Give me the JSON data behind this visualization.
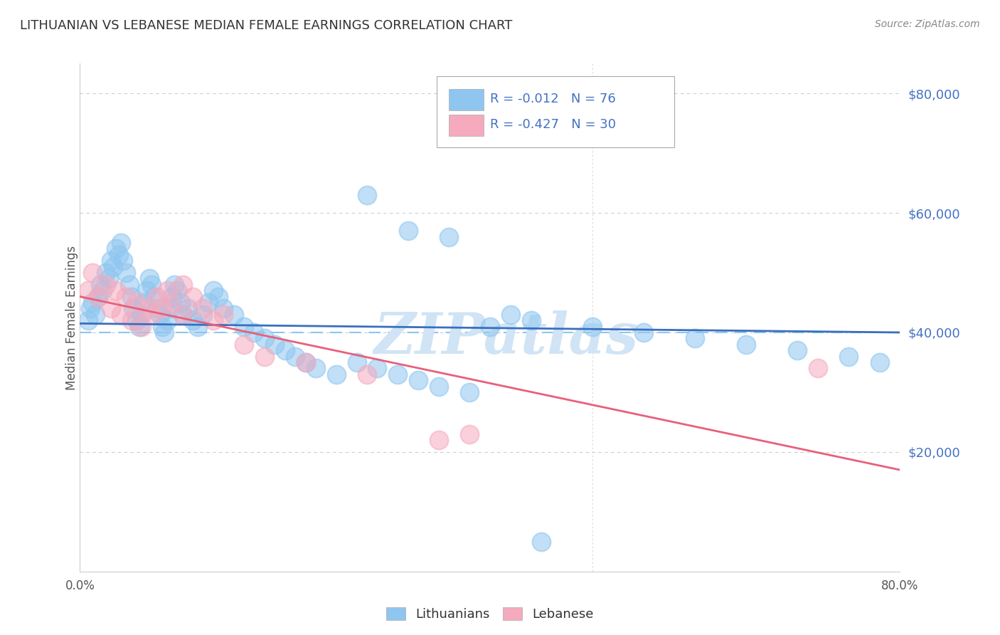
{
  "title": "LITHUANIAN VS LEBANESE MEDIAN FEMALE EARNINGS CORRELATION CHART",
  "source": "Source: ZipAtlas.com",
  "ylabel": "Median Female Earnings",
  "watermark": "ZIPatlas",
  "xmin": 0.0,
  "xmax": 0.8,
  "ymin": 0,
  "ymax": 85000,
  "yticks": [
    20000,
    40000,
    60000,
    80000
  ],
  "ytick_labels": [
    "$20,000",
    "$40,000",
    "$60,000",
    "$80,000"
  ],
  "hline_y": 40000,
  "legend": {
    "lit_R": "R = -0.012",
    "lit_N": "N = 76",
    "leb_R": "R = -0.427",
    "leb_N": "N = 30"
  },
  "lit_color": "#8EC6F0",
  "leb_color": "#F5AABE",
  "lit_line_color": "#3A6FBF",
  "leb_line_color": "#E8607A",
  "hline_color": "#8EC6F0",
  "background_color": "#FFFFFF",
  "grid_color": "#CCCCCC",
  "axis_color": "#4472C4",
  "title_color": "#333333",
  "watermark_color": "#D0E4F5",
  "lit_scatter_x": [
    0.008,
    0.01,
    0.012,
    0.015,
    0.018,
    0.02,
    0.022,
    0.025,
    0.028,
    0.03,
    0.032,
    0.035,
    0.038,
    0.04,
    0.042,
    0.045,
    0.048,
    0.05,
    0.052,
    0.055,
    0.058,
    0.06,
    0.062,
    0.065,
    0.068,
    0.07,
    0.072,
    0.075,
    0.078,
    0.08,
    0.082,
    0.085,
    0.088,
    0.09,
    0.092,
    0.095,
    0.098,
    0.1,
    0.105,
    0.11,
    0.115,
    0.12,
    0.125,
    0.13,
    0.135,
    0.14,
    0.15,
    0.16,
    0.17,
    0.18,
    0.19,
    0.2,
    0.21,
    0.22,
    0.23,
    0.25,
    0.27,
    0.29,
    0.31,
    0.33,
    0.35,
    0.38,
    0.4,
    0.42,
    0.44,
    0.5,
    0.55,
    0.6,
    0.65,
    0.7,
    0.75,
    0.78,
    0.28,
    0.32,
    0.36,
    0.45
  ],
  "lit_scatter_y": [
    42000,
    44000,
    45000,
    43000,
    46000,
    48000,
    47000,
    50000,
    49000,
    52000,
    51000,
    54000,
    53000,
    55000,
    52000,
    50000,
    48000,
    46000,
    44000,
    42000,
    41000,
    43000,
    45000,
    47000,
    49000,
    48000,
    46000,
    44000,
    43000,
    41000,
    40000,
    42000,
    44000,
    46000,
    48000,
    47000,
    45000,
    43000,
    44000,
    42000,
    41000,
    43000,
    45000,
    47000,
    46000,
    44000,
    43000,
    41000,
    40000,
    39000,
    38000,
    37000,
    36000,
    35000,
    34000,
    33000,
    35000,
    34000,
    33000,
    32000,
    31000,
    30000,
    41000,
    43000,
    42000,
    41000,
    40000,
    39000,
    38000,
    37000,
    36000,
    35000,
    63000,
    57000,
    56000,
    5000
  ],
  "leb_scatter_x": [
    0.008,
    0.012,
    0.018,
    0.025,
    0.03,
    0.035,
    0.04,
    0.045,
    0.05,
    0.055,
    0.06,
    0.065,
    0.07,
    0.075,
    0.08,
    0.085,
    0.09,
    0.1,
    0.11,
    0.12,
    0.13,
    0.14,
    0.16,
    0.18,
    0.22,
    0.28,
    0.35,
    0.38,
    0.72,
    0.1
  ],
  "leb_scatter_y": [
    47000,
    50000,
    46000,
    48000,
    44000,
    47000,
    43000,
    46000,
    42000,
    45000,
    41000,
    44000,
    43000,
    46000,
    44000,
    47000,
    45000,
    43000,
    46000,
    44000,
    42000,
    43000,
    38000,
    36000,
    35000,
    33000,
    22000,
    23000,
    34000,
    48000
  ],
  "lit_trend_x": [
    0.0,
    0.8
  ],
  "lit_trend_y": [
    41500,
    40000
  ],
  "leb_trend_x": [
    0.0,
    0.8
  ],
  "leb_trend_y": [
    46000,
    17000
  ],
  "xtick_positions": [
    0.0,
    0.8
  ],
  "xtick_labels": [
    "0.0%",
    "80.0%"
  ]
}
